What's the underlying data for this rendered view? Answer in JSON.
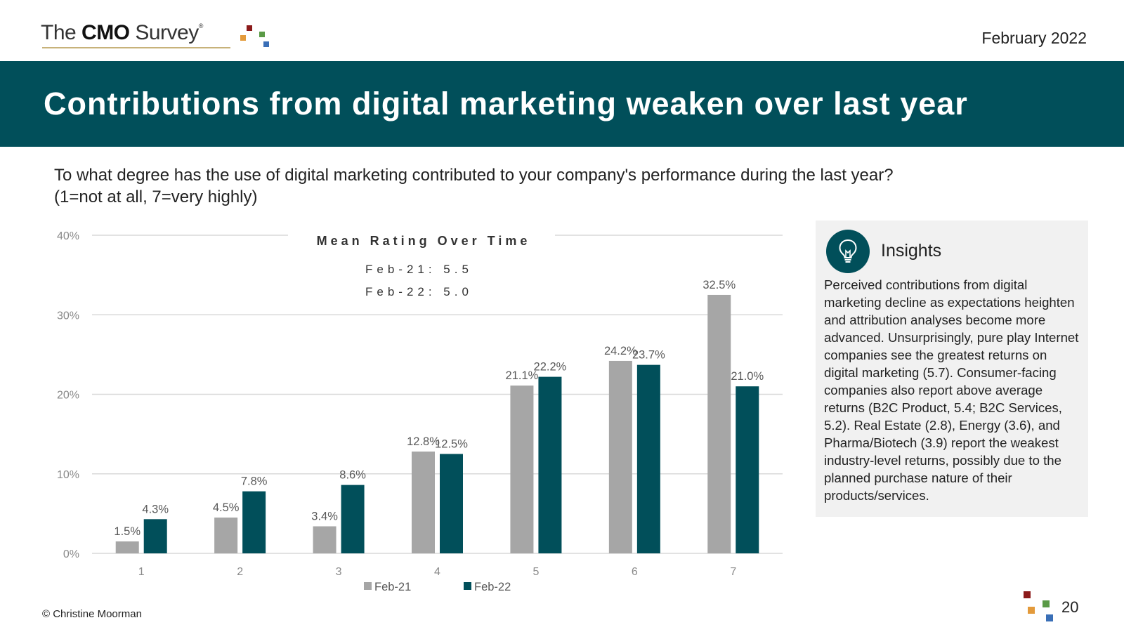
{
  "header": {
    "logo_the": "The ",
    "logo_cmo": "CMO",
    "logo_survey": " Survey",
    "logo_reg": "®",
    "date": "February 2022"
  },
  "title": "Contributions from digital marketing weaken over last year",
  "question": {
    "line1": "To what degree has the use of digital marketing contributed to your company's performance during the last year?",
    "line2": "(1=not at all, 7=very highly)"
  },
  "chart_data": {
    "type": "bar",
    "categories": [
      "1",
      "2",
      "3",
      "4",
      "5",
      "6",
      "7"
    ],
    "series": [
      {
        "name": "Feb-21",
        "values": [
          1.5,
          4.5,
          3.4,
          12.8,
          21.1,
          24.2,
          32.5
        ],
        "labels": [
          "1.5%",
          "4.5%",
          "3.4%",
          "12.8%",
          "21.1%",
          "24.2%",
          "32.5%"
        ],
        "color": "#a6a6a6"
      },
      {
        "name": "Feb-22",
        "values": [
          4.3,
          7.8,
          8.6,
          12.5,
          22.2,
          23.7,
          21.0
        ],
        "labels": [
          "4.3%",
          "7.8%",
          "8.6%",
          "12.5%",
          "22.2%",
          "23.7%",
          "21.0%"
        ],
        "color": "#014f5a"
      }
    ],
    "y_ticks": [
      "0%",
      "10%",
      "20%",
      "30%",
      "40%"
    ],
    "ylim": [
      0,
      40
    ],
    "xlabel": "",
    "ylabel": "",
    "grid": true,
    "legend_position": "bottom",
    "annotation": {
      "title": "Mean Rating Over Time",
      "lines": [
        "Feb-21:  5.5",
        "Feb-22:  5.0"
      ]
    }
  },
  "insights": {
    "heading": "Insights",
    "text": "Perceived contributions from digital marketing decline as expectations heighten and attribution analyses become more advanced. Unsurprisingly, pure play Internet companies see the greatest returns on digital marketing (5.7). Consumer-facing companies also report above average returns (B2C Product, 5.4; B2C Services, 5.2). Real Estate (2.8), Energy (3.6), and Pharma/Biotech (3.9) report the weakest industry-level returns, possibly due to the planned purchase nature of their products/services."
  },
  "footer": {
    "copyright": "© Christine Moorman",
    "page_number": "20"
  },
  "colors": {
    "brand_teal": "#014f5a",
    "bar_grey": "#a6a6a6",
    "dot_red": "#8b1a1a",
    "dot_orange": "#e39a3b",
    "dot_green": "#5a9a46",
    "dot_blue": "#3a6fb7"
  }
}
